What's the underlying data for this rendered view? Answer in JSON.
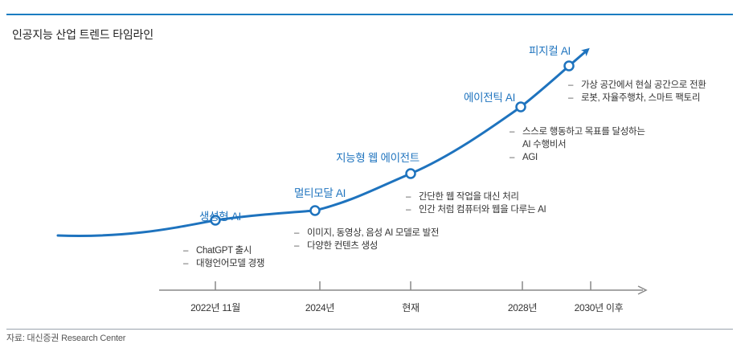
{
  "title": "인공지능 산업 트렌드 타임라인",
  "source": "자료: 대신증권 Research Center",
  "colors": {
    "accent": "#1e73be",
    "rule": "#1a7cc1",
    "axis": "#777777"
  },
  "stages": [
    {
      "label": "생성형 AI",
      "bullets": [
        "ChatGPT 출시",
        "대형언어모델 경쟁"
      ]
    },
    {
      "label": "멀티모달 AI",
      "bullets": [
        "이미지, 동영상, 음성 AI 모델로 발전",
        "다양한 컨텐츠 생성"
      ]
    },
    {
      "label": "지능형 웹 에이전트",
      "bullets": [
        "간단한 웹 작업을 대신 처리",
        "인간 처럼 컴퓨터와 웹을 다루는 AI"
      ]
    },
    {
      "label": "에이전틱 AI",
      "bullets": [
        "스스로 행동하고 목표를 달성하는",
        "AI 수행비서",
        "AGI"
      ]
    },
    {
      "label": "피지컬 AI",
      "bullets": [
        "가상 공간에서 현실 공간으로 전환",
        "로봇, 자율주행차, 스마트 팩토리"
      ]
    }
  ],
  "axis_ticks": [
    "2022년 11월",
    "2024년",
    "현재",
    "2028년",
    "2030년 이후"
  ]
}
